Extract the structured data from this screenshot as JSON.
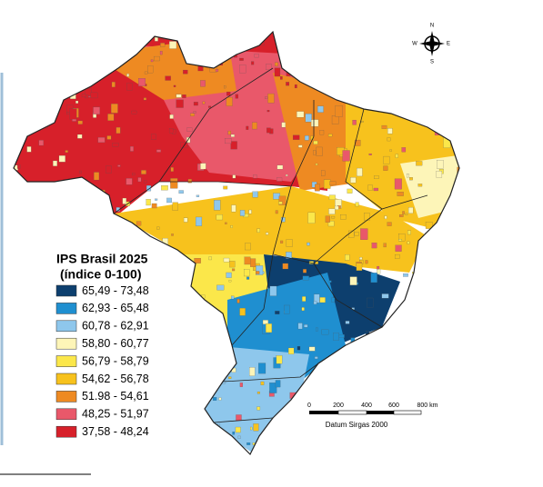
{
  "legend": {
    "title": "IPS Brasil 2025",
    "subtitle": "(índice 0-100)",
    "items": [
      {
        "label": "65,49 - 73,48",
        "color": "#0d3f6e"
      },
      {
        "label": "62,93 - 65,48",
        "color": "#1f8fd0"
      },
      {
        "label": "60,78 - 62,91",
        "color": "#8ec7ec"
      },
      {
        "label": "58,80 - 60,77",
        "color": "#fdf5b8"
      },
      {
        "label": "56,79 - 58,79",
        "color": "#fbe74a"
      },
      {
        "label": "54,62 - 56,78",
        "color": "#f7c21d"
      },
      {
        "label": "51.98 - 54,61",
        "color": "#ee8a22"
      },
      {
        "label": "48,25 - 51,97",
        "color": "#e9586a"
      },
      {
        "label": "37,58 - 48,24",
        "color": "#d7202a"
      }
    ]
  },
  "scale_bar": {
    "ticks": [
      "0",
      "200",
      "400",
      "600",
      "800 km"
    ],
    "datum": "Datum Sirgas 2000"
  },
  "compass": {
    "n": "N",
    "s": "S",
    "e": "E",
    "w": "W"
  }
}
